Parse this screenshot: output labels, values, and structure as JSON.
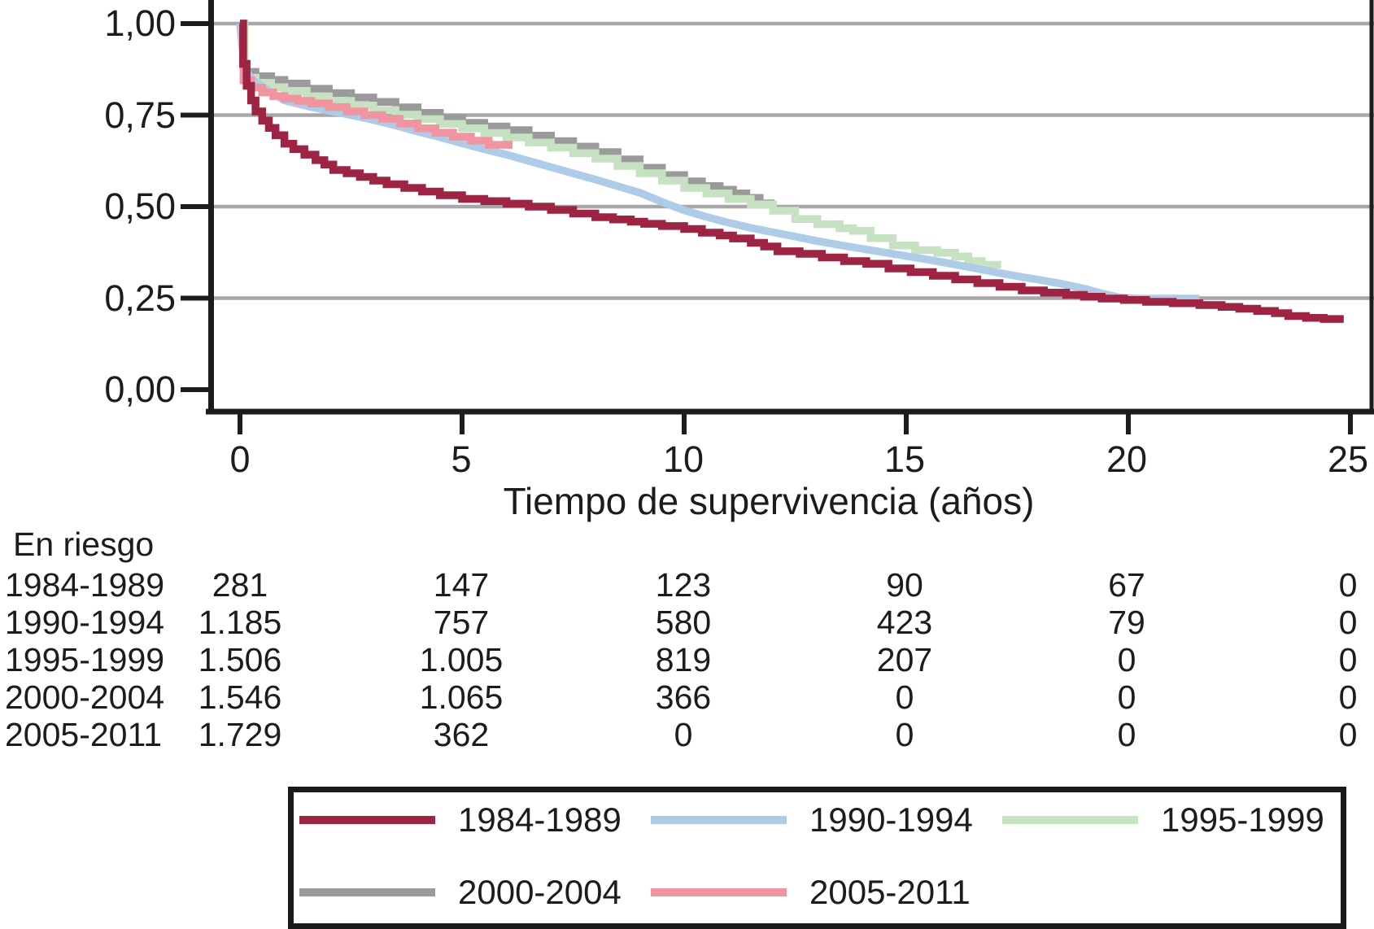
{
  "chart_data": {
    "type": "line",
    "subtype": "kaplan-meier-survival",
    "title": "",
    "xlabel": "Tiempo de supervivencia (años)",
    "ylabel": "",
    "xlim": [
      0,
      25
    ],
    "ylim": [
      0,
      1
    ],
    "x_ticks": [
      0,
      5,
      10,
      15,
      20,
      25
    ],
    "x_tick_labels": [
      "0",
      "5",
      "10",
      "15",
      "20",
      "25"
    ],
    "y_ticks": [
      1.0,
      0.75,
      0.5,
      0.25,
      0.0
    ],
    "y_tick_labels": [
      "1,00",
      "0,75",
      "0,50",
      "0,25",
      "0,00"
    ],
    "grid": "horizontal",
    "legend_position": "bottom-box",
    "colors": {
      "grid": "#a7a7a7",
      "axis": "#1c1c1c",
      "text": "#1c1c1c"
    },
    "series": [
      {
        "name": "1984-1989",
        "color": "#9e2444",
        "style": "step",
        "points": [
          [
            0,
            1.0
          ],
          [
            0.07,
            0.89
          ],
          [
            0.15,
            0.83
          ],
          [
            0.25,
            0.79
          ],
          [
            0.35,
            0.76
          ],
          [
            0.5,
            0.735
          ],
          [
            0.65,
            0.715
          ],
          [
            0.8,
            0.695
          ],
          [
            1.0,
            0.672
          ],
          [
            1.2,
            0.657
          ],
          [
            1.45,
            0.642
          ],
          [
            1.7,
            0.627
          ],
          [
            1.9,
            0.615
          ],
          [
            2.1,
            0.6
          ],
          [
            2.4,
            0.591
          ],
          [
            2.7,
            0.581
          ],
          [
            3.0,
            0.571
          ],
          [
            3.3,
            0.561
          ],
          [
            3.7,
            0.551
          ],
          [
            4.1,
            0.541
          ],
          [
            4.5,
            0.531
          ],
          [
            5.0,
            0.521
          ],
          [
            5.5,
            0.515
          ],
          [
            6.0,
            0.508
          ],
          [
            6.5,
            0.5
          ],
          [
            7.0,
            0.491
          ],
          [
            7.5,
            0.481
          ],
          [
            8.0,
            0.471
          ],
          [
            8.4,
            0.465
          ],
          [
            8.8,
            0.459
          ],
          [
            9.1,
            0.453
          ],
          [
            9.5,
            0.447
          ],
          [
            10.0,
            0.439
          ],
          [
            10.4,
            0.429
          ],
          [
            10.8,
            0.421
          ],
          [
            11.1,
            0.413
          ],
          [
            11.5,
            0.401
          ],
          [
            11.8,
            0.391
          ],
          [
            12.1,
            0.378
          ],
          [
            12.6,
            0.371
          ],
          [
            13.1,
            0.361
          ],
          [
            13.6,
            0.351
          ],
          [
            14.1,
            0.344
          ],
          [
            14.6,
            0.331
          ],
          [
            15.1,
            0.321
          ],
          [
            15.6,
            0.311
          ],
          [
            16.1,
            0.301
          ],
          [
            16.6,
            0.291
          ],
          [
            17.1,
            0.281
          ],
          [
            17.6,
            0.271
          ],
          [
            18.1,
            0.265
          ],
          [
            18.6,
            0.259
          ],
          [
            19.0,
            0.254
          ],
          [
            19.4,
            0.249
          ],
          [
            19.9,
            0.245
          ],
          [
            20.4,
            0.24
          ],
          [
            21.0,
            0.236
          ],
          [
            21.6,
            0.231
          ],
          [
            22.1,
            0.226
          ],
          [
            22.5,
            0.221
          ],
          [
            22.9,
            0.215
          ],
          [
            23.3,
            0.209
          ],
          [
            23.6,
            0.201
          ],
          [
            24.0,
            0.196
          ],
          [
            24.4,
            0.193
          ],
          [
            24.85,
            0.193
          ]
        ]
      },
      {
        "name": "1990-1994",
        "color": "#aecce8",
        "style": "line",
        "points": [
          [
            0,
            1.0
          ],
          [
            0.1,
            0.875
          ],
          [
            0.3,
            0.845
          ],
          [
            0.6,
            0.82
          ],
          [
            1.0,
            0.79
          ],
          [
            1.5,
            0.775
          ],
          [
            2.0,
            0.762
          ],
          [
            2.5,
            0.75
          ],
          [
            3.0,
            0.737
          ],
          [
            3.5,
            0.722
          ],
          [
            4.0,
            0.705
          ],
          [
            4.5,
            0.69
          ],
          [
            5.0,
            0.673
          ],
          [
            5.5,
            0.657
          ],
          [
            6.0,
            0.642
          ],
          [
            6.5,
            0.625
          ],
          [
            7.0,
            0.608
          ],
          [
            7.5,
            0.591
          ],
          [
            8.0,
            0.574
          ],
          [
            8.5,
            0.556
          ],
          [
            9.0,
            0.538
          ],
          [
            9.5,
            0.513
          ],
          [
            10.0,
            0.49
          ],
          [
            10.5,
            0.472
          ],
          [
            11.0,
            0.456
          ],
          [
            11.5,
            0.442
          ],
          [
            12.0,
            0.43
          ],
          [
            12.5,
            0.418
          ],
          [
            13.0,
            0.406
          ],
          [
            13.5,
            0.395
          ],
          [
            14.0,
            0.385
          ],
          [
            14.5,
            0.375
          ],
          [
            15.0,
            0.365
          ],
          [
            15.5,
            0.355
          ],
          [
            16.0,
            0.344
          ],
          [
            16.5,
            0.333
          ],
          [
            17.0,
            0.321
          ],
          [
            17.5,
            0.31
          ],
          [
            18.0,
            0.3
          ],
          [
            18.5,
            0.289
          ],
          [
            19.0,
            0.276
          ],
          [
            19.4,
            0.263
          ],
          [
            19.8,
            0.252
          ],
          [
            20.2,
            0.249
          ],
          [
            21.6,
            0.249
          ]
        ]
      },
      {
        "name": "1995-1999",
        "color": "#c7e2c3",
        "style": "step",
        "points": [
          [
            0,
            1.0
          ],
          [
            0.1,
            0.852
          ],
          [
            0.35,
            0.838
          ],
          [
            0.7,
            0.826
          ],
          [
            1.0,
            0.816
          ],
          [
            1.5,
            0.801
          ],
          [
            2.0,
            0.789
          ],
          [
            2.5,
            0.776
          ],
          [
            3.0,
            0.764
          ],
          [
            3.5,
            0.751
          ],
          [
            4.0,
            0.739
          ],
          [
            4.5,
            0.726
          ],
          [
            5.0,
            0.714
          ],
          [
            5.5,
            0.701
          ],
          [
            6.0,
            0.689
          ],
          [
            6.5,
            0.675
          ],
          [
            7.0,
            0.661
          ],
          [
            7.5,
            0.646
          ],
          [
            8.0,
            0.631
          ],
          [
            8.5,
            0.611
          ],
          [
            9.0,
            0.591
          ],
          [
            9.5,
            0.571
          ],
          [
            10.0,
            0.551
          ],
          [
            10.5,
            0.536
          ],
          [
            11.0,
            0.521
          ],
          [
            11.5,
            0.506
          ],
          [
            12.0,
            0.489
          ],
          [
            12.5,
            0.466
          ],
          [
            13.0,
            0.452
          ],
          [
            13.5,
            0.441
          ],
          [
            13.8,
            0.434
          ],
          [
            14.2,
            0.414
          ],
          [
            14.7,
            0.394
          ],
          [
            15.2,
            0.381
          ],
          [
            15.7,
            0.374
          ],
          [
            16.1,
            0.364
          ],
          [
            16.4,
            0.351
          ],
          [
            16.7,
            0.341
          ],
          [
            17.05,
            0.331
          ]
        ]
      },
      {
        "name": "2000-2004",
        "color": "#9a9a9a",
        "style": "step",
        "points": [
          [
            0,
            1.0
          ],
          [
            0.1,
            0.868
          ],
          [
            0.35,
            0.856
          ],
          [
            0.7,
            0.846
          ],
          [
            1.0,
            0.836
          ],
          [
            1.5,
            0.822
          ],
          [
            2.0,
            0.81
          ],
          [
            2.5,
            0.798
          ],
          [
            3.0,
            0.786
          ],
          [
            3.5,
            0.771
          ],
          [
            4.0,
            0.756
          ],
          [
            4.5,
            0.741
          ],
          [
            5.0,
            0.729
          ],
          [
            5.5,
            0.719
          ],
          [
            6.0,
            0.709
          ],
          [
            6.5,
            0.694
          ],
          [
            7.0,
            0.679
          ],
          [
            7.5,
            0.664
          ],
          [
            8.0,
            0.649
          ],
          [
            8.5,
            0.629
          ],
          [
            9.0,
            0.606
          ],
          [
            9.5,
            0.586
          ],
          [
            10.0,
            0.569
          ],
          [
            10.4,
            0.556
          ],
          [
            10.8,
            0.546
          ],
          [
            11.1,
            0.536
          ],
          [
            11.4,
            0.524
          ],
          [
            11.7,
            0.509
          ],
          [
            11.95,
            0.497
          ]
        ]
      },
      {
        "name": "2005-2011",
        "color": "#f0949f",
        "style": "step",
        "points": [
          [
            0,
            1.0
          ],
          [
            0.08,
            0.845
          ],
          [
            0.25,
            0.825
          ],
          [
            0.5,
            0.812
          ],
          [
            0.75,
            0.802
          ],
          [
            1.0,
            0.795
          ],
          [
            1.3,
            0.789
          ],
          [
            1.6,
            0.782
          ],
          [
            2.0,
            0.772
          ],
          [
            2.4,
            0.76
          ],
          [
            2.8,
            0.75
          ],
          [
            3.2,
            0.74
          ],
          [
            3.6,
            0.727
          ],
          [
            4.0,
            0.714
          ],
          [
            4.4,
            0.702
          ],
          [
            4.8,
            0.691
          ],
          [
            5.2,
            0.68
          ],
          [
            5.6,
            0.669
          ],
          [
            6.05,
            0.658
          ]
        ]
      }
    ]
  },
  "risk_table": {
    "title": "En riesgo",
    "columns_at_years": [
      0,
      5,
      10,
      15,
      20,
      25
    ],
    "rows": [
      {
        "label": "1984-1989",
        "values": [
          "281",
          "147",
          "123",
          "90",
          "67",
          "0"
        ]
      },
      {
        "label": "1990-1994",
        "values": [
          "1.185",
          "757",
          "580",
          "423",
          "79",
          "0"
        ]
      },
      {
        "label": "1995-1999",
        "values": [
          "1.506",
          "1.005",
          "819",
          "207",
          "0",
          "0"
        ]
      },
      {
        "label": "2000-2004",
        "values": [
          "1.546",
          "1.065",
          "366",
          "0",
          "0",
          "0"
        ]
      },
      {
        "label": "2005-2011",
        "values": [
          "1.729",
          "362",
          "0",
          "0",
          "0",
          "0"
        ]
      }
    ]
  },
  "legend": {
    "items": [
      {
        "label": "1984-1989",
        "color": "#9e2444"
      },
      {
        "label": "1990-1994",
        "color": "#aecce8"
      },
      {
        "label": "1995-1999",
        "color": "#c7e2c3"
      },
      {
        "label": "2000-2004",
        "color": "#9a9a9a"
      },
      {
        "label": "2005-2011",
        "color": "#f0949f"
      }
    ]
  }
}
